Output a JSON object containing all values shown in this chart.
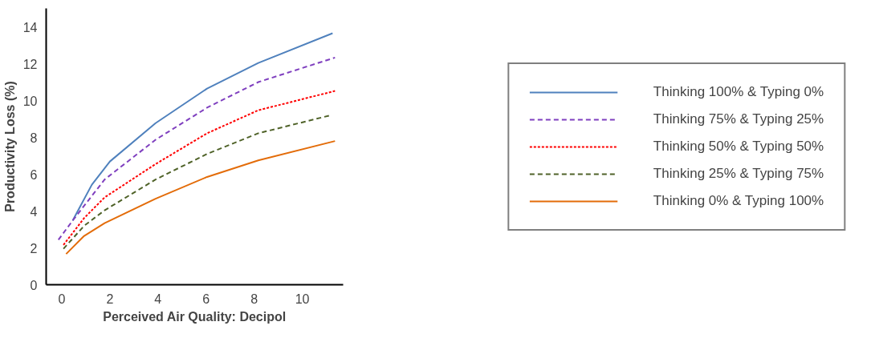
{
  "chart_data": {
    "type": "line",
    "xlabel": "Perceived Air Quality: Decipol",
    "ylabel": "Productivity Loss (%)",
    "xlim": [
      -0.65,
      11.7
    ],
    "ylim": [
      0,
      15
    ],
    "xticks": [
      0,
      2,
      4,
      6,
      8,
      10
    ],
    "yticks": [
      0,
      2,
      4,
      6,
      8,
      10,
      12,
      14
    ],
    "grid": false,
    "legend": "right",
    "marker": "none",
    "series": [
      {
        "name": "Thinking 100% & Typing 0%",
        "color": "#4f81bd",
        "line_style": "solid",
        "x": [
          0.45,
          1.25,
          2.0,
          3.9,
          6.04,
          8.17,
          11.26
        ],
        "values": [
          3.48,
          5.43,
          6.69,
          8.77,
          10.65,
          12.04,
          13.65
        ]
      },
      {
        "name": "Thinking 75% & Typing 25%",
        "color": "#7f3fbf",
        "line_style": "dashed",
        "x": [
          -0.14,
          0.45,
          1.78,
          3.9,
          6.04,
          8.17,
          11.36
        ],
        "values": [
          2.44,
          3.48,
          5.71,
          7.87,
          9.61,
          11.0,
          12.33
        ]
      },
      {
        "name": "Thinking 50% & Typing 50%",
        "color": "#ff0000",
        "line_style": "dotted",
        "x": [
          0.07,
          0.93,
          1.78,
          3.9,
          6.04,
          8.17,
          11.36
        ],
        "values": [
          2.16,
          3.62,
          4.74,
          6.55,
          8.22,
          9.47,
          10.52
        ]
      },
      {
        "name": "Thinking 25% & Typing 75%",
        "color": "#4f6228",
        "line_style": "dashed",
        "x": [
          0.07,
          0.93,
          1.78,
          3.9,
          6.04,
          8.17,
          11.15
        ],
        "values": [
          1.95,
          3.2,
          4.04,
          5.71,
          7.1,
          8.22,
          9.19
        ]
      },
      {
        "name": "Thinking 0% & Typing 100%",
        "color": "#e36c09",
        "line_style": "solid",
        "x": [
          0.18,
          0.93,
          1.78,
          3.9,
          6.04,
          8.17,
          11.36
        ],
        "values": [
          1.67,
          2.65,
          3.34,
          4.67,
          5.85,
          6.75,
          7.8
        ]
      }
    ]
  }
}
